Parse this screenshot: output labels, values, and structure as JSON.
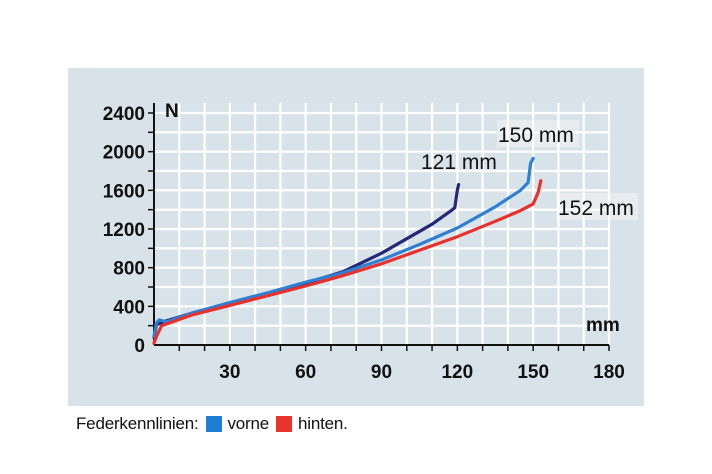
{
  "legend": {
    "prefix": "Federkennlinien:",
    "items": [
      {
        "label": "vorne",
        "color": "#1e7fd0"
      },
      {
        "label": "hinten.",
        "color": "#e8332f"
      }
    ]
  },
  "chart_data": {
    "type": "line",
    "title": "",
    "xlabel": "mm",
    "ylabel": "N",
    "xlim": [
      0,
      180
    ],
    "ylim": [
      0,
      2400
    ],
    "xticks": [
      30,
      60,
      90,
      120,
      150,
      180
    ],
    "yticks": [
      0,
      400,
      800,
      1200,
      1600,
      2000,
      2400
    ],
    "grid": true,
    "series": [
      {
        "name": "121 mm",
        "color": "#252878",
        "points": [
          [
            0,
            80
          ],
          [
            1,
            210
          ],
          [
            5,
            250
          ],
          [
            15,
            330
          ],
          [
            30,
            430
          ],
          [
            45,
            530
          ],
          [
            60,
            640
          ],
          [
            75,
            760
          ],
          [
            90,
            950
          ],
          [
            100,
            1100
          ],
          [
            110,
            1250
          ],
          [
            117,
            1380
          ],
          [
            119,
            1420
          ],
          [
            120,
            1600
          ],
          [
            120.5,
            1660
          ]
        ]
      },
      {
        "name": "150 mm",
        "color": "#2f7fd3",
        "points": [
          [
            0,
            90
          ],
          [
            1,
            230
          ],
          [
            2,
            260
          ],
          [
            5,
            240
          ],
          [
            15,
            330
          ],
          [
            30,
            440
          ],
          [
            45,
            540
          ],
          [
            60,
            650
          ],
          [
            75,
            750
          ],
          [
            90,
            880
          ],
          [
            105,
            1040
          ],
          [
            120,
            1210
          ],
          [
            135,
            1430
          ],
          [
            145,
            1600
          ],
          [
            148,
            1680
          ],
          [
            149,
            1880
          ],
          [
            150,
            1930
          ]
        ]
      },
      {
        "name": "152 mm",
        "color": "#e8302c",
        "points": [
          [
            0,
            20
          ],
          [
            1,
            90
          ],
          [
            3,
            200
          ],
          [
            15,
            310
          ],
          [
            30,
            410
          ],
          [
            45,
            510
          ],
          [
            60,
            610
          ],
          [
            75,
            720
          ],
          [
            90,
            840
          ],
          [
            105,
            980
          ],
          [
            120,
            1120
          ],
          [
            135,
            1280
          ],
          [
            145,
            1390
          ],
          [
            150,
            1460
          ],
          [
            152,
            1580
          ],
          [
            153,
            1700
          ]
        ]
      }
    ],
    "annotations": [
      {
        "text": "121 mm",
        "series": 0
      },
      {
        "text": "150 mm",
        "series": 1
      },
      {
        "text": "152 mm",
        "series": 2
      }
    ]
  }
}
